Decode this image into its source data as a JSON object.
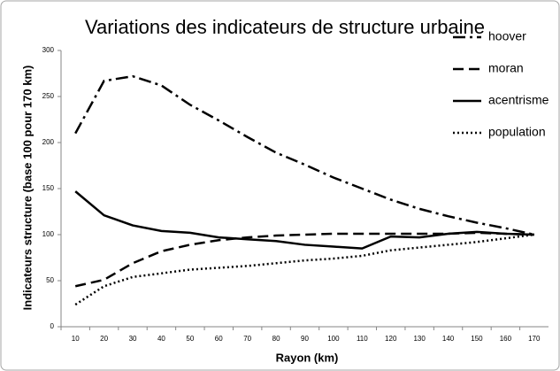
{
  "chart_data": {
    "type": "line",
    "title": "Variations des indicateurs de structure urbaine",
    "x_label": "Rayon (km)",
    "y_label": "Indicateurs structure (base 100 pour 170 km)",
    "categories": [
      10,
      20,
      30,
      40,
      50,
      60,
      70,
      80,
      90,
      100,
      110,
      120,
      130,
      140,
      150,
      160,
      170
    ],
    "series": [
      {
        "name": "hoover",
        "color": "#000000",
        "dash": "dash-dot",
        "values": [
          210,
          267,
          272,
          262,
          241,
          224,
          206,
          189,
          176,
          162,
          150,
          138,
          128,
          120,
          113,
          107,
          100
        ]
      },
      {
        "name": "moran",
        "color": "#000000",
        "dash": "dash",
        "values": [
          44,
          51,
          69,
          82,
          89,
          94,
          97,
          99,
          100,
          101,
          101,
          101,
          101,
          101,
          102,
          101,
          100
        ]
      },
      {
        "name": "acentrisme",
        "color": "#000000",
        "dash": "solid",
        "values": [
          147,
          121,
          110,
          104,
          102,
          97,
          95,
          93,
          89,
          87,
          85,
          98,
          97,
          101,
          103,
          101,
          100
        ]
      },
      {
        "name": "population",
        "color": "#000000",
        "dash": "dot",
        "values": [
          24,
          44,
          54,
          58,
          62,
          64,
          66,
          69,
          72,
          74,
          77,
          83,
          86,
          89,
          92,
          96,
          100
        ]
      }
    ],
    "ylim": [
      0,
      300
    ],
    "yticks": [
      0,
      50,
      100,
      150,
      200,
      250,
      300
    ],
    "grid": false,
    "legend": "top-right"
  }
}
